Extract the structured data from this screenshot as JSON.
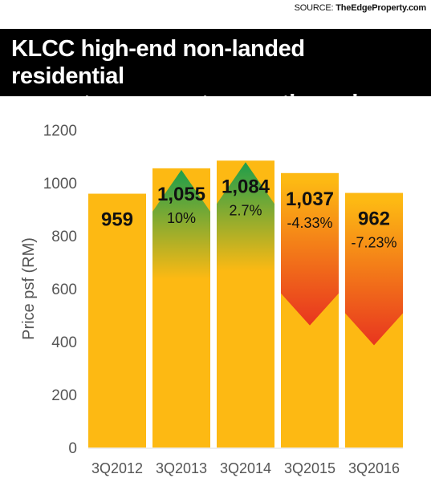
{
  "source": {
    "label": "SOURCE:",
    "name": "TheEdgeProperty.com"
  },
  "title_lines": [
    "KLCC high-end non-landed residential",
    "property average transaction price"
  ],
  "chart_data": {
    "type": "bar",
    "title": "KLCC high-end non-landed residential property average transaction price",
    "xlabel": "",
    "ylabel": "Price psf (RM)",
    "ylim": [
      0,
      1200
    ],
    "yticks": [
      0,
      200,
      400,
      600,
      800,
      1000,
      1200
    ],
    "categories": [
      "3Q2012",
      "3Q2013",
      "3Q2014",
      "3Q2015",
      "3Q2016"
    ],
    "values": [
      959,
      1055,
      1084,
      1037,
      962
    ],
    "value_labels": [
      "959",
      "1,055",
      "1,084",
      "1,037",
      "962"
    ],
    "change_labels": [
      "",
      "10%",
      "2.7%",
      "-4.33%",
      "-7.23%"
    ],
    "change_direction": [
      "none",
      "up",
      "up",
      "down",
      "down"
    ],
    "colors": {
      "bar": "#FDB913",
      "up": "#1E9E4B",
      "down": "#E8351F",
      "text": "#111111",
      "axis": "#555555"
    },
    "grid": false,
    "legend": "none"
  }
}
